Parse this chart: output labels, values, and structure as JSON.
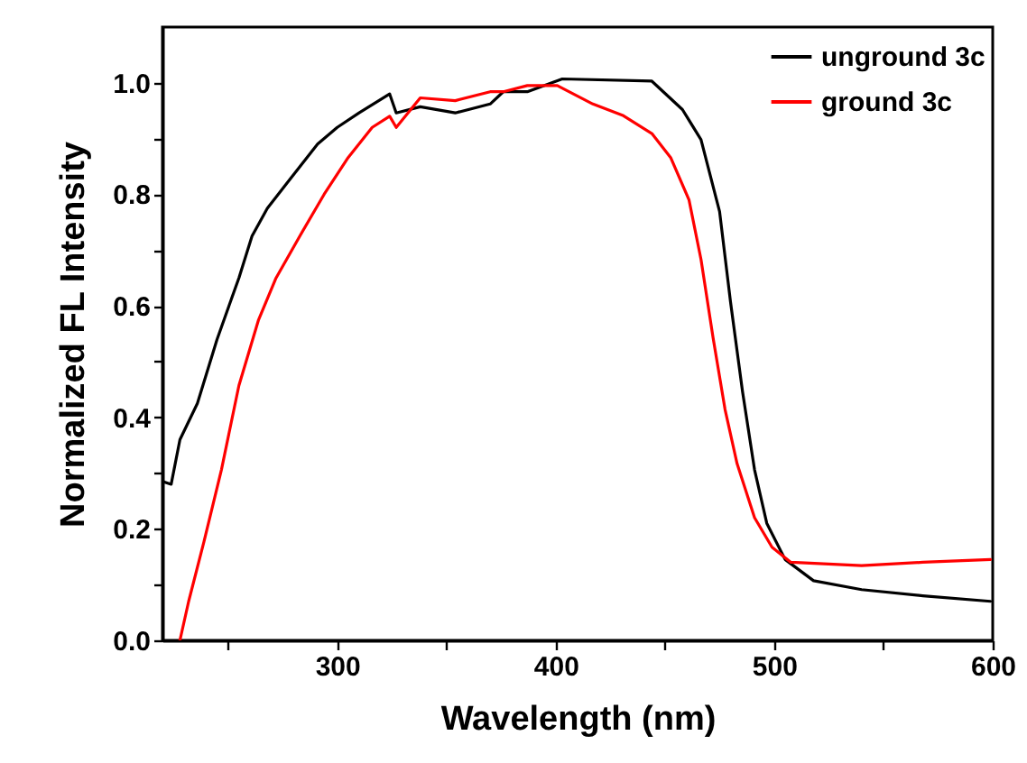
{
  "chart_data": {
    "type": "line",
    "xlabel": "Wavelength (nm)",
    "ylabel": "Normalized FL Intensity",
    "xlim": [
      220,
      600
    ],
    "ylim": [
      0,
      1.1
    ],
    "xticks": [
      {
        "value": 250,
        "label": null
      },
      300,
      {
        "value": 350,
        "label": null
      },
      400,
      {
        "value": 450,
        "label": null
      },
      500,
      {
        "value": 550,
        "label": null
      },
      600
    ],
    "yticks": [
      {
        "value": 0,
        "label": "0.0"
      },
      {
        "value": 0.1,
        "label": null
      },
      0.2,
      {
        "value": 0.3,
        "label": null
      },
      0.4,
      {
        "value": 0.5,
        "label": null
      },
      0.6,
      {
        "value": 0.7,
        "label": null
      },
      0.8,
      {
        "value": 0.9,
        "label": null
      },
      {
        "value": 1,
        "label": "1.0"
      }
    ],
    "grid": false,
    "legend": "top right",
    "marker": "none",
    "line_style": "solid",
    "series": [
      {
        "name": "unground 3c",
        "color": "#000000",
        "x": [
          220,
          224,
          228,
          236,
          245,
          255,
          261,
          268,
          277,
          291,
          300,
          310,
          324,
          327,
          338,
          354,
          370,
          376,
          387,
          403,
          444,
          458,
          466.5,
          475,
          480,
          485.5,
          491,
          496.6,
          505,
          518,
          540,
          568,
          599
        ],
        "values": [
          0.285,
          0.28,
          0.36,
          0.425,
          0.54,
          0.65,
          0.725,
          0.775,
          0.82,
          0.89,
          0.92,
          0.946,
          0.98,
          0.946,
          0.957,
          0.946,
          0.962,
          0.984,
          0.984,
          1.007,
          1.003,
          0.952,
          0.898,
          0.769,
          0.607,
          0.446,
          0.306,
          0.21,
          0.145,
          0.107,
          0.091,
          0.08,
          0.07
        ]
      },
      {
        "name": "ground 3c",
        "color": "#ff0000",
        "x": [
          228,
          232,
          239,
          247,
          255,
          264,
          272,
          283,
          294,
          305,
          316,
          324,
          327,
          338,
          354,
          370,
          376,
          387,
          400.7,
          417,
          431,
          444,
          452.6,
          461,
          466.5,
          472,
          477.5,
          483,
          491,
          499,
          507.6,
          540,
          568,
          599
        ],
        "values": [
          0,
          0.07,
          0.177,
          0.306,
          0.457,
          0.575,
          0.65,
          0.726,
          0.8,
          0.866,
          0.92,
          0.94,
          0.92,
          0.973,
          0.968,
          0.984,
          0.984,
          0.995,
          0.995,
          0.962,
          0.941,
          0.909,
          0.866,
          0.79,
          0.683,
          0.543,
          0.414,
          0.317,
          0.22,
          0.167,
          0.14,
          0.134,
          0.14,
          0.145
        ]
      }
    ]
  }
}
